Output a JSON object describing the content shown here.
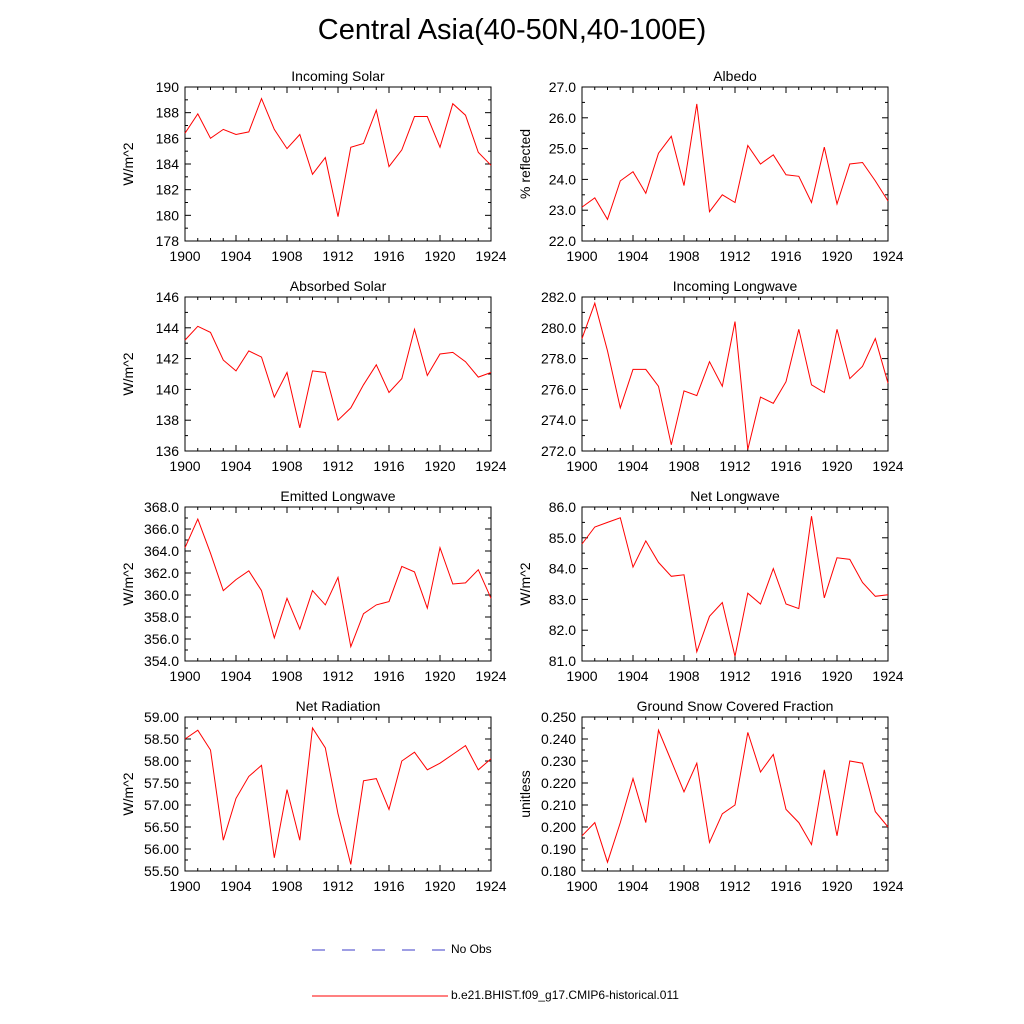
{
  "title": "Central Asia(40-50N,40-100E)",
  "legend": {
    "obs_label": "No Obs",
    "obs_color": "#3c3cc8",
    "model_label": "b.e21.BHIST.f09_g17.CMIP6-historical.011",
    "model_color": "#ff0000"
  },
  "chart_data": [
    {
      "type": "line",
      "title": "Incoming Solar",
      "ylabel": "W/m^2",
      "xlim": [
        1900,
        1924
      ],
      "ylim": [
        178,
        190
      ],
      "xticks": [
        "1900",
        "1904",
        "1908",
        "1912",
        "1916",
        "1920",
        "1924"
      ],
      "yticks": [
        "178",
        "180",
        "182",
        "184",
        "186",
        "188",
        "190"
      ],
      "x": [
        1900,
        1901,
        1902,
        1903,
        1904,
        1905,
        1906,
        1907,
        1908,
        1909,
        1910,
        1911,
        1912,
        1913,
        1914,
        1915,
        1916,
        1917,
        1918,
        1919,
        1920,
        1921,
        1922,
        1923,
        1924
      ],
      "series": [
        {
          "values": [
            186.4,
            187.9,
            186.0,
            186.7,
            186.3,
            186.5,
            189.1,
            186.7,
            185.2,
            186.3,
            183.2,
            184.5,
            179.9,
            185.3,
            185.6,
            188.2,
            183.8,
            185.1,
            187.7,
            187.7,
            185.3,
            188.7,
            187.8,
            184.9,
            183.9
          ]
        }
      ]
    },
    {
      "type": "line",
      "title": "Albedo",
      "ylabel": "% reflected",
      "xlim": [
        1900,
        1924
      ],
      "ylim": [
        22.0,
        27.0
      ],
      "xticks": [
        "1900",
        "1904",
        "1908",
        "1912",
        "1916",
        "1920",
        "1924"
      ],
      "yticks": [
        "22.0",
        "23.0",
        "24.0",
        "25.0",
        "26.0",
        "27.0"
      ],
      "x": [
        1900,
        1901,
        1902,
        1903,
        1904,
        1905,
        1906,
        1907,
        1908,
        1909,
        1910,
        1911,
        1912,
        1913,
        1914,
        1915,
        1916,
        1917,
        1918,
        1919,
        1920,
        1921,
        1922,
        1923,
        1924
      ],
      "series": [
        {
          "values": [
            23.1,
            23.4,
            22.7,
            23.95,
            24.25,
            23.55,
            24.85,
            25.4,
            23.8,
            26.45,
            22.95,
            23.5,
            23.25,
            25.1,
            24.5,
            24.8,
            24.15,
            24.1,
            23.25,
            25.05,
            23.2,
            24.5,
            24.55,
            23.95,
            23.3
          ]
        }
      ]
    },
    {
      "type": "line",
      "title": "Absorbed Solar",
      "ylabel": "W/m^2",
      "xlim": [
        1900,
        1924
      ],
      "ylim": [
        136,
        146
      ],
      "xticks": [
        "1900",
        "1904",
        "1908",
        "1912",
        "1916",
        "1920",
        "1924"
      ],
      "yticks": [
        "136",
        "138",
        "140",
        "142",
        "144",
        "146"
      ],
      "x": [
        1900,
        1901,
        1902,
        1903,
        1904,
        1905,
        1906,
        1907,
        1908,
        1909,
        1910,
        1911,
        1912,
        1913,
        1914,
        1915,
        1916,
        1917,
        1918,
        1919,
        1920,
        1921,
        1922,
        1923,
        1924
      ],
      "series": [
        {
          "values": [
            143.2,
            144.1,
            143.7,
            141.9,
            141.2,
            142.5,
            142.1,
            139.5,
            141.1,
            137.5,
            141.2,
            141.1,
            138.0,
            138.8,
            140.3,
            141.6,
            139.8,
            140.7,
            143.9,
            140.9,
            142.3,
            142.4,
            141.8,
            140.8,
            141.1
          ]
        }
      ]
    },
    {
      "type": "line",
      "title": "Incoming Longwave",
      "ylabel": "",
      "xlim": [
        1900,
        1924
      ],
      "ylim": [
        272.0,
        282.0
      ],
      "xticks": [
        "1900",
        "1904",
        "1908",
        "1912",
        "1916",
        "1920",
        "1924"
      ],
      "yticks": [
        "272.0",
        "274.0",
        "276.0",
        "278.0",
        "280.0",
        "282.0"
      ],
      "x": [
        1900,
        1901,
        1902,
        1903,
        1904,
        1905,
        1906,
        1907,
        1908,
        1909,
        1910,
        1911,
        1912,
        1913,
        1914,
        1915,
        1916,
        1917,
        1918,
        1919,
        1920,
        1921,
        1922,
        1923,
        1924
      ],
      "series": [
        {
          "values": [
            279.3,
            281.6,
            278.5,
            274.8,
            277.3,
            277.3,
            276.2,
            272.4,
            275.9,
            275.6,
            277.8,
            276.2,
            280.4,
            272.1,
            275.5,
            275.1,
            276.5,
            279.9,
            276.3,
            275.8,
            279.9,
            276.7,
            277.5,
            279.3,
            276.4
          ]
        }
      ]
    },
    {
      "type": "line",
      "title": "Emitted Longwave",
      "ylabel": "W/m^2",
      "xlim": [
        1900,
        1924
      ],
      "ylim": [
        354.0,
        368.0
      ],
      "xticks": [
        "1900",
        "1904",
        "1908",
        "1912",
        "1916",
        "1920",
        "1924"
      ],
      "yticks": [
        "354.0",
        "356.0",
        "358.0",
        "360.0",
        "362.0",
        "364.0",
        "366.0",
        "368.0"
      ],
      "x": [
        1900,
        1901,
        1902,
        1903,
        1904,
        1905,
        1906,
        1907,
        1908,
        1909,
        1910,
        1911,
        1912,
        1913,
        1914,
        1915,
        1916,
        1917,
        1918,
        1919,
        1920,
        1921,
        1922,
        1923,
        1924
      ],
      "series": [
        {
          "values": [
            364.3,
            366.9,
            363.8,
            360.4,
            361.4,
            362.2,
            360.4,
            356.1,
            359.7,
            356.9,
            360.4,
            359.1,
            361.6,
            355.3,
            358.3,
            359.1,
            359.4,
            362.6,
            362.1,
            358.8,
            364.3,
            361.0,
            361.1,
            362.3,
            359.7
          ]
        }
      ]
    },
    {
      "type": "line",
      "title": "Net Longwave",
      "ylabel": "W/m^2",
      "xlim": [
        1900,
        1924
      ],
      "ylim": [
        81.0,
        86.0
      ],
      "xticks": [
        "1900",
        "1904",
        "1908",
        "1912",
        "1916",
        "1920",
        "1924"
      ],
      "yticks": [
        "81.0",
        "82.0",
        "83.0",
        "84.0",
        "85.0",
        "86.0"
      ],
      "x": [
        1900,
        1901,
        1902,
        1903,
        1904,
        1905,
        1906,
        1907,
        1908,
        1909,
        1910,
        1911,
        1912,
        1913,
        1914,
        1915,
        1916,
        1917,
        1918,
        1919,
        1920,
        1921,
        1922,
        1923,
        1924
      ],
      "series": [
        {
          "values": [
            84.8,
            85.35,
            85.5,
            85.65,
            84.05,
            84.9,
            84.2,
            83.75,
            83.8,
            81.3,
            82.45,
            82.9,
            81.15,
            83.2,
            82.85,
            84.0,
            82.85,
            82.7,
            85.7,
            83.05,
            84.35,
            84.3,
            83.55,
            83.1,
            83.15
          ]
        }
      ]
    },
    {
      "type": "line",
      "title": "Net Radiation",
      "ylabel": "W/m^2",
      "xlim": [
        1900,
        1924
      ],
      "ylim": [
        55.5,
        59.0
      ],
      "xticks": [
        "1900",
        "1904",
        "1908",
        "1912",
        "1916",
        "1920",
        "1924"
      ],
      "yticks": [
        "55.50",
        "56.00",
        "56.50",
        "57.00",
        "57.50",
        "58.00",
        "58.50",
        "59.00"
      ],
      "x": [
        1900,
        1901,
        1902,
        1903,
        1904,
        1905,
        1906,
        1907,
        1908,
        1909,
        1910,
        1911,
        1912,
        1913,
        1914,
        1915,
        1916,
        1917,
        1918,
        1919,
        1920,
        1921,
        1922,
        1923,
        1924
      ],
      "series": [
        {
          "values": [
            58.5,
            58.7,
            58.25,
            56.2,
            57.15,
            57.65,
            57.9,
            55.8,
            57.35,
            56.2,
            58.75,
            58.3,
            56.8,
            55.65,
            57.55,
            57.6,
            56.9,
            58.0,
            58.2,
            57.8,
            57.95,
            58.15,
            58.35,
            57.8,
            58.05
          ]
        }
      ]
    },
    {
      "type": "line",
      "title": "Ground Snow Covered Fraction",
      "ylabel": "unitless",
      "xlim": [
        1900,
        1924
      ],
      "ylim": [
        0.18,
        0.25
      ],
      "xticks": [
        "1900",
        "1904",
        "1908",
        "1912",
        "1916",
        "1920",
        "1924"
      ],
      "yticks": [
        "0.180",
        "0.190",
        "0.200",
        "0.210",
        "0.220",
        "0.230",
        "0.240",
        "0.250"
      ],
      "x": [
        1900,
        1901,
        1902,
        1903,
        1904,
        1905,
        1906,
        1907,
        1908,
        1909,
        1910,
        1911,
        1912,
        1913,
        1914,
        1915,
        1916,
        1917,
        1918,
        1919,
        1920,
        1921,
        1922,
        1923,
        1924
      ],
      "series": [
        {
          "values": [
            0.196,
            0.202,
            0.184,
            0.202,
            0.222,
            0.202,
            0.244,
            0.23,
            0.216,
            0.229,
            0.193,
            0.206,
            0.21,
            0.243,
            0.225,
            0.233,
            0.208,
            0.202,
            0.192,
            0.226,
            0.196,
            0.23,
            0.229,
            0.207,
            0.2
          ]
        }
      ]
    }
  ]
}
